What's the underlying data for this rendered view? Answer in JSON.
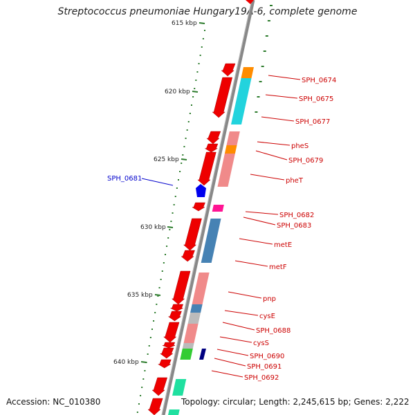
{
  "title": "Streptococcus pneumoniae Hungary19A-6, complete genome",
  "accession_text": "Accession: NC_010380",
  "topology_text": "Topology: circular; Length: 2,245,615 bp; Genes: 2,222",
  "ruler": [
    {
      "label": "615 kbp",
      "kbp": 615
    },
    {
      "label": "620 kbp",
      "kbp": 620
    },
    {
      "label": "625 kbp",
      "kbp": 625
    },
    {
      "label": "630 kbp",
      "kbp": 630
    },
    {
      "label": "635 kbp",
      "kbp": 635
    },
    {
      "label": "640 kbp",
      "kbp": 640
    }
  ],
  "gene_labels": [
    {
      "name": "SPH_0674",
      "color": "#cc0000"
    },
    {
      "name": "SPH_0675",
      "color": "#cc0000"
    },
    {
      "name": "SPH_0677",
      "color": "#cc0000"
    },
    {
      "name": "pheS",
      "color": "#cc0000"
    },
    {
      "name": "SPH_0679",
      "color": "#cc0000"
    },
    {
      "name": "pheT",
      "color": "#cc0000"
    },
    {
      "name": "SPH_0681",
      "color": "#0000cc"
    },
    {
      "name": "SPH_0682",
      "color": "#cc0000"
    },
    {
      "name": "SPH_0683",
      "color": "#cc0000"
    },
    {
      "name": "metE",
      "color": "#cc0000"
    },
    {
      "name": "metF",
      "color": "#cc0000"
    },
    {
      "name": "pnp",
      "color": "#cc0000"
    },
    {
      "name": "cysE",
      "color": "#cc0000"
    },
    {
      "name": "SPH_0688",
      "color": "#cc0000"
    },
    {
      "name": "cysS",
      "color": "#cc0000"
    },
    {
      "name": "SPH_0690",
      "color": "#cc0000"
    },
    {
      "name": "SPH_0691",
      "color": "#cc0000"
    },
    {
      "name": "SPH_0692",
      "color": "#cc0000"
    }
  ],
  "colors": {
    "forward_gene": "#ee0000",
    "reverse_gene": "#0000ee",
    "backbone": "#888888",
    "ruler_tick": "#2a7a2a",
    "cog_orange": "#ff8c00",
    "cog_cyan": "#22d3dd",
    "cog_pink": "#f08a8a",
    "cog_steelblue": "#4682b4",
    "cog_gray": "#bbbbbb",
    "cog_magenta": "#ff1493",
    "cog_green": "#33cc33",
    "cog_navy": "#000080",
    "cog_aqua": "#20e0a0"
  }
}
